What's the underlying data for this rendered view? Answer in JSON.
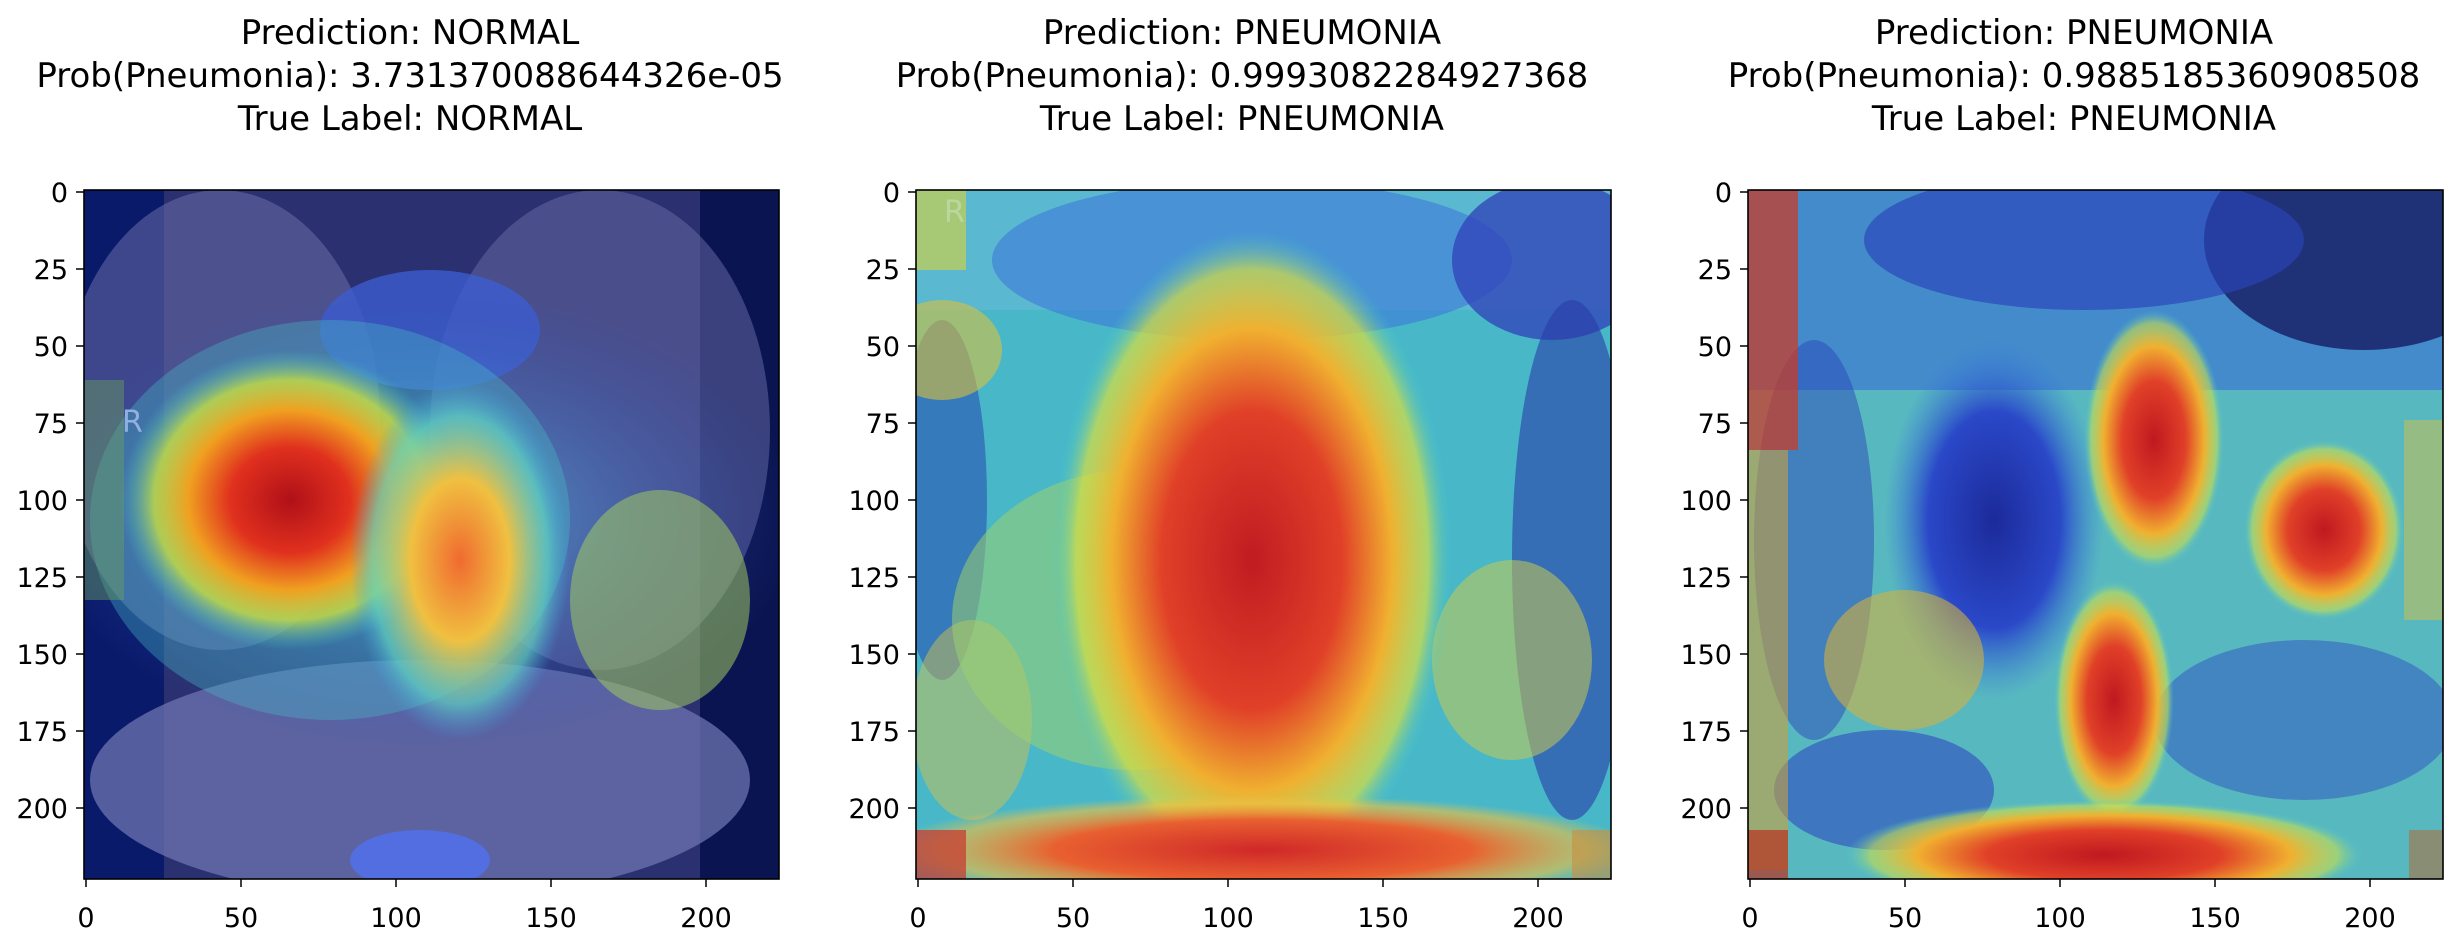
{
  "panels": [
    {
      "prediction_line": "Prediction: NORMAL",
      "prob_line": "Prob(Pneumonia): 3.731370088644326e-05",
      "true_line": "True Label: NORMAL",
      "xticks": [
        "0",
        "50",
        "100",
        "150",
        "200"
      ],
      "yticks": [
        "0",
        "25",
        "50",
        "75",
        "100",
        "125",
        "150",
        "175",
        "200"
      ],
      "image_marker": "R",
      "heatmap": "hot region over right upper/mid lung and mediastinum",
      "colormap": "jet",
      "colors": {
        "background": "#1a1f55",
        "hot": "#c0181a",
        "warm": "#e8c020",
        "cool": "#40c8c8"
      }
    },
    {
      "prediction_line": "Prediction: PNEUMONIA",
      "prob_line": "Prob(Pneumonia): 0.9993082284927368",
      "true_line": "True Label: PNEUMONIA",
      "xticks": [
        "0",
        "50",
        "100",
        "150",
        "200"
      ],
      "yticks": [
        "0",
        "25",
        "50",
        "75",
        "100",
        "125",
        "150",
        "175",
        "200"
      ],
      "image_marker": "R",
      "heatmap": "hot region over central chest and lower edge",
      "colormap": "jet",
      "colors": {
        "background": "#3aa8c8",
        "hot": "#c8282a",
        "warm": "#e0c040",
        "cool": "#4060d0"
      }
    },
    {
      "prediction_line": "Prediction: PNEUMONIA",
      "prob_line": "Prob(Pneumonia): 0.9885185360908508",
      "true_line": "True Label: PNEUMONIA",
      "xticks": [
        "0",
        "50",
        "100",
        "150",
        "200"
      ],
      "yticks": [
        "0",
        "25",
        "50",
        "75",
        "100",
        "125",
        "150",
        "175",
        "200"
      ],
      "image_marker": "",
      "heatmap": "hot regions at upper center, right mid lung, lower center and lower edge",
      "colormap": "jet",
      "colors": {
        "background": "#2840b8",
        "hot": "#c0202a",
        "warm": "#e0c040",
        "cool": "#50c8c8"
      }
    }
  ]
}
